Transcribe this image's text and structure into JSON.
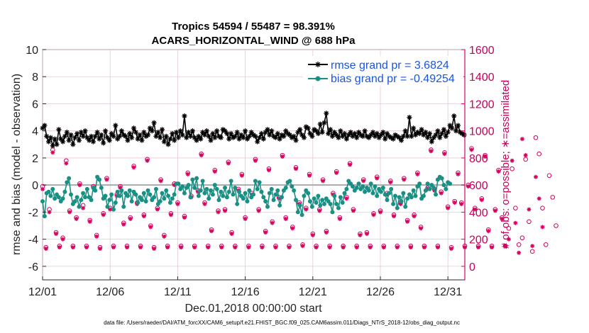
{
  "chart_data": {
    "type": "line",
    "title": "Tropics 54594 / 55487 = 98.391%",
    "subtitle": "ACARS_HORIZONTAL_WIND @ 688 hPa",
    "xlabel": "Dec.01,2018 00:00:00 start",
    "ylabel": "rmse and bias (model - observation)",
    "ylabel_right": "# of obs: o=possible; ∗=assimilated",
    "xlim": [
      1,
      32.25
    ],
    "ylim": [
      -7,
      10
    ],
    "ylim_right": [
      -100,
      1600
    ],
    "x_ticks": [
      1,
      6,
      11,
      16,
      21,
      26,
      31
    ],
    "x_tick_labels": [
      "12/01",
      "12/06",
      "12/11",
      "12/16",
      "12/21",
      "12/26",
      "12/31"
    ],
    "y_ticks": [
      -6,
      -4,
      -2,
      0,
      2,
      4,
      6,
      8,
      10
    ],
    "y_tick_labels": [
      "-6",
      "-4",
      "-2",
      "0",
      "2",
      "4",
      "6",
      "8",
      "10"
    ],
    "y_right_ticks": [
      0,
      200,
      400,
      600,
      800,
      1000,
      1200,
      1400,
      1600
    ],
    "y_right_tick_labels": [
      "0",
      "200",
      "400",
      "600",
      "800",
      "1000",
      "1200",
      "1400",
      "1600"
    ],
    "footer": "data file: /Users/raeder/DAI/ATM_forcXX/CAM6_setup/f.e21.FHIST_BGC.f09_025.CAM6assim.011/Diags_NTrS_2018-12/obs_diag_output.nc",
    "series": [
      {
        "name": "rmse grand pr = 3.6824",
        "color": "#000000",
        "marker": "asterisk",
        "values": [
          4.2,
          4.4,
          3.6,
          3.2,
          3.5,
          2.9,
          3.4,
          3.0,
          4.1,
          3.4,
          3.2,
          3.6,
          3.9,
          3.3,
          3.7,
          3.0,
          3.5,
          3.8,
          3.3,
          3.9,
          3.6,
          4.0,
          3.5,
          3.3,
          3.6,
          3.2,
          3.6,
          3.9,
          3.4,
          3.7,
          3.1,
          4.0,
          3.5,
          3.3,
          3.8,
          3.6,
          4.4,
          3.4,
          3.6,
          4.0,
          3.7,
          3.6,
          3.3,
          3.8,
          3.5,
          4.2,
          3.9,
          3.4,
          3.7,
          3.3,
          3.9,
          3.6,
          3.7,
          4.2,
          4.0,
          4.6,
          3.6,
          3.9,
          3.5,
          4.1,
          3.2,
          3.6,
          3.0,
          3.4,
          3.8,
          3.3,
          3.9,
          3.5,
          4.0,
          3.7,
          5.1,
          3.5,
          3.9,
          3.6,
          4.0,
          3.5,
          3.3,
          3.6,
          3.4,
          3.9,
          3.7,
          4.0,
          3.6,
          3.3,
          3.8,
          3.5,
          4.0,
          3.6,
          3.5,
          4.1,
          4.0,
          3.8,
          3.4,
          3.8,
          3.5,
          3.6,
          3.9,
          3.4,
          3.7,
          3.5,
          4.0,
          3.4,
          3.6,
          3.9,
          3.7,
          3.6,
          3.2,
          3.5,
          3.8,
          3.4,
          3.9,
          4.1,
          3.7,
          4.0,
          3.6,
          3.5,
          3.8,
          3.4,
          3.7,
          3.6,
          4.0,
          3.8,
          3.7,
          3.5,
          3.6,
          3.3,
          3.9,
          4.1,
          3.7,
          3.5,
          4.3,
          4.2,
          3.8,
          3.6,
          4.1,
          4.0,
          3.8,
          4.5,
          3.9,
          4.6,
          5.3,
          3.8,
          4.1,
          3.6,
          3.9,
          3.7,
          3.5,
          4.0,
          3.6,
          3.8,
          3.4,
          3.7,
          3.9,
          3.6,
          3.8,
          3.5,
          3.9,
          3.7,
          3.6,
          4.0,
          3.6,
          3.5,
          3.7,
          3.9,
          3.6,
          3.8,
          3.5,
          3.7,
          3.9,
          3.4,
          3.8,
          3.6,
          3.5,
          3.4,
          3.7,
          3.6,
          3.5,
          3.3,
          3.6,
          4.0,
          3.6,
          5.0,
          3.6,
          4.2,
          3.7,
          3.9,
          3.8,
          4.1,
          3.7,
          3.9,
          3.5,
          3.8,
          3.2,
          3.5,
          3.7,
          4.0,
          3.5,
          3.8,
          4.1,
          3.6,
          3.9,
          4.4,
          4.2,
          5.1,
          4.0,
          4.4,
          3.9,
          3.8,
          3.7
        ],
        "x_start": 1.0,
        "x_step": 0.15
      },
      {
        "name": "bias grand pr = -0.49254",
        "color": "#1a8f84",
        "marker": "circle",
        "x_start": 1.0,
        "x_step": 0.15,
        "values": [
          -1.2,
          -2.3,
          -0.6,
          -0.5,
          -0.8,
          -0.3,
          -1.0,
          -0.7,
          -0.9,
          -1.2,
          -1.0,
          -0.5,
          0.2,
          0.5,
          -0.7,
          -1.4,
          -1.2,
          -0.9,
          -1.6,
          -1.1,
          -0.6,
          -0.9,
          -0.3,
          -0.9,
          -1.1,
          -0.2,
          -0.4,
          0.6,
          0.4,
          -0.2,
          -1.0,
          -0.8,
          -1.6,
          -1.1,
          -0.7,
          -1.8,
          -1.3,
          -0.5,
          -0.8,
          -0.4,
          -1.6,
          -0.6,
          -0.8,
          -0.4,
          -1.2,
          -0.5,
          -0.7,
          -1.3,
          -0.9,
          -1.1,
          -0.6,
          -1.2,
          -0.4,
          -0.7,
          -1.1,
          -0.9,
          -0.3,
          -1.4,
          -1.2,
          -0.6,
          -1.0,
          -0.4,
          -0.8,
          -1.3,
          -1.0,
          -0.7,
          0.1,
          0.1,
          -0.3,
          -0.1,
          -0.6,
          -0.2,
          0.0,
          -0.9,
          0.4,
          -0.2,
          0.5,
          -0.8,
          -0.4,
          0.3,
          -0.6,
          -0.3,
          -1.0,
          -0.4,
          -0.7,
          0.0,
          -0.3,
          -1.1,
          -0.5,
          -0.8,
          -0.2,
          -0.9,
          -0.5,
          0.3,
          -0.7,
          -0.2,
          -1.4,
          -0.5,
          -0.8,
          -1.0,
          -0.6,
          -1.2,
          -0.4,
          -0.9,
          -0.7,
          0.3,
          -0.3,
          0.2,
          -0.5,
          -0.9,
          -1.2,
          -1.6,
          -0.6,
          -0.3,
          -1.1,
          -0.7,
          -0.4,
          -1.5,
          -0.9,
          -0.4,
          -0.2,
          0.2,
          0.3,
          -0.1,
          -0.4,
          -1.1,
          -2.0,
          -1.5,
          -2.2,
          -0.8,
          -0.4,
          -0.6,
          -1.2,
          -1.6,
          -1.0,
          -1.3,
          -0.8,
          -1.5,
          -1.1,
          -1.4,
          -1.0,
          -1.2,
          -1.4,
          -2.0,
          -0.8,
          -1.4,
          -1.7,
          -0.9,
          -1.3,
          -0.6,
          -0.3,
          0.3,
          0.1,
          -0.1,
          -0.4,
          -0.2,
          0.1,
          -0.3,
          -0.1,
          -0.5,
          -0.2,
          -0.4,
          0.1,
          -0.6,
          -0.1,
          -0.8,
          -0.3,
          -0.5,
          -0.2,
          -0.7,
          -1.1,
          -0.6,
          -0.3,
          -1.4,
          -0.8,
          -1.7,
          -0.9,
          -1.2,
          -0.6,
          -1.6,
          -1.0,
          -0.7,
          -0.9,
          -0.4,
          -0.8,
          -0.1,
          0.1,
          -1.0,
          -0.8,
          -0.4,
          0.1,
          -0.3,
          0.0,
          -0.2,
          -0.7,
          0.4,
          0.6,
          0.5,
          0.0,
          -0.3,
          0.2,
          0.1
        ]
      }
    ],
    "obs_counts": {
      "possible_marker": "o",
      "assimilated_marker": "*",
      "color": "#d6005e",
      "x_start": 1.0,
      "x_step": 0.25,
      "possible": [
        590,
        140,
        420,
        860,
        250,
        150,
        210,
        780,
        410,
        150,
        360,
        610,
        450,
        150,
        340,
        590,
        230,
        140,
        390,
        650,
        430,
        150,
        530,
        590,
        320,
        150,
        360,
        740,
        470,
        150,
        380,
        790,
        300,
        140,
        430,
        640,
        230,
        150,
        390,
        610,
        470,
        150,
        370,
        690,
        520,
        150,
        560,
        830,
        470,
        150,
        270,
        710,
        410,
        150,
        420,
        770,
        250,
        150,
        570,
        680,
        360,
        150,
        540,
        790,
        420,
        150,
        260,
        720,
        330,
        150,
        510,
        820,
        360,
        150,
        290,
        730,
        470,
        160,
        430,
        680,
        240,
        150,
        420,
        640,
        260,
        150,
        540,
        700,
        360,
        150,
        510,
        760,
        420,
        150,
        240,
        640,
        250,
        150,
        390,
        660,
        410,
        150,
        540,
        630,
        380,
        150,
        470,
        650,
        340,
        150,
        380,
        690,
        290,
        150,
        580,
        860,
        570,
        150,
        550,
        840,
        440,
        140,
        480,
        690,
        470,
        150,
        600,
        870,
        430,
        150,
        500,
        820,
        270,
        150,
        420,
        710,
        360,
        150,
        280,
        720,
        430,
        160,
        210,
        790,
        330,
        110,
        950,
        830,
        430,
        160,
        670,
        510,
        300
      ],
      "assimilated": [
        570,
        130,
        400,
        840,
        240,
        140,
        200,
        760,
        400,
        140,
        350,
        600,
        430,
        140,
        330,
        580,
        220,
        130,
        380,
        640,
        420,
        140,
        520,
        580,
        310,
        140,
        350,
        730,
        460,
        140,
        370,
        780,
        290,
        130,
        420,
        630,
        220,
        140,
        380,
        600,
        460,
        140,
        360,
        680,
        510,
        140,
        550,
        820,
        460,
        140,
        260,
        700,
        400,
        140,
        410,
        760,
        240,
        140,
        560,
        670,
        350,
        140,
        530,
        780,
        410,
        140,
        250,
        710,
        320,
        140,
        500,
        810,
        350,
        140,
        280,
        720,
        460,
        150,
        420,
        670,
        230,
        140,
        410,
        630,
        250,
        140,
        530,
        690,
        350,
        140,
        500,
        750,
        410,
        140,
        230,
        630,
        240,
        140,
        380,
        650,
        400,
        140,
        530,
        620,
        370,
        140,
        460,
        640,
        330,
        140,
        370,
        680,
        280,
        140,
        570,
        850,
        560,
        140,
        540,
        830,
        430,
        130,
        470,
        680,
        460,
        140,
        590,
        860,
        420,
        140,
        490,
        810,
        260,
        140,
        410,
        700,
        350,
        150,
        200,
        780,
        320,
        100,
        940,
        820,
        420,
        150,
        660,
        500,
        290
      ]
    },
    "reference_line": {
      "y": 0,
      "color": "#aaaaaa"
    }
  }
}
